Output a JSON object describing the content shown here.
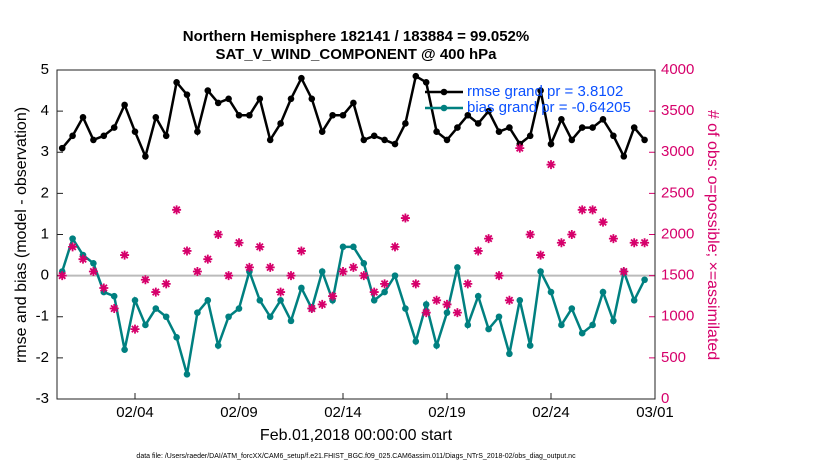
{
  "chart_data": {
    "type": "line",
    "title": "Northern Hemisphere 182141 / 183884 = 99.052%",
    "subtitle": "SAT_V_WIND_COMPONENT @ 400 hPa",
    "xlabel": "Feb.01,2018 00:00:00 start",
    "ylabel": "rmse and bias (model - observation)",
    "y2label": "# of obs: o=possible; ×=assimilated",
    "footnote": "data file: /Users/raeder/DAI/ATM_forcXX/CAM6_setup/f.e21.FHIST_BGC.f09_025.CAM6assim.011/Diags_NTrS_2018-02/obs_diag_output.nc",
    "x": [
      0.5,
      1,
      1.5,
      2,
      2.5,
      3,
      3.5,
      4,
      4.5,
      5,
      5.5,
      6,
      6.5,
      7,
      7.5,
      8,
      8.5,
      9,
      9.5,
      10,
      10.5,
      11,
      11.5,
      12,
      12.5,
      13,
      13.5,
      14,
      14.5,
      15,
      15.5,
      16,
      16.5,
      17,
      17.5,
      18,
      18.5,
      19,
      19.5,
      20,
      20.5,
      21,
      21.5,
      22,
      22.5,
      23,
      23.5,
      24,
      24.5,
      25,
      25.5,
      26,
      26.5,
      27,
      27.5,
      28,
      28.5
    ],
    "xlim": [
      0.25,
      29
    ],
    "xticks": [
      {
        "value": 4,
        "label": "02/04"
      },
      {
        "value": 9,
        "label": "02/09"
      },
      {
        "value": 14,
        "label": "02/14"
      },
      {
        "value": 19,
        "label": "02/19"
      },
      {
        "value": 24,
        "label": "02/24"
      },
      {
        "value": 29,
        "label": "03/01"
      }
    ],
    "ylim": [
      -3,
      5
    ],
    "yticks": [
      -3,
      -2,
      -1,
      0,
      1,
      2,
      3,
      4,
      5
    ],
    "y2lim": [
      0,
      4000
    ],
    "y2ticks": [
      0,
      500,
      1000,
      1500,
      2000,
      2500,
      3000,
      3500,
      4000
    ],
    "reference_line": 0,
    "legend": "upper right",
    "series": [
      {
        "name": "rmse grand pr = 3.8102",
        "color": "#000000",
        "marker": "circle",
        "values": [
          3.1,
          3.4,
          3.85,
          3.3,
          3.4,
          3.6,
          4.15,
          3.5,
          2.9,
          3.85,
          3.4,
          4.7,
          4.4,
          3.5,
          4.5,
          4.2,
          4.3,
          3.9,
          3.9,
          4.3,
          3.3,
          3.7,
          4.3,
          4.8,
          4.3,
          3.5,
          3.9,
          3.9,
          4.2,
          3.3,
          3.4,
          3.3,
          3.2,
          3.7,
          4.85,
          4.7,
          3.5,
          3.3,
          3.6,
          3.9,
          3.7,
          4.0,
          3.5,
          3.6,
          3.2,
          3.4,
          4.5,
          3.2,
          3.8,
          3.3,
          3.6,
          3.6,
          3.8,
          3.4,
          2.9,
          3.6,
          3.3
        ]
      },
      {
        "name": "bias grand pr = -0.64205",
        "color": "#008080",
        "marker": "circle",
        "values": [
          0.1,
          0.9,
          0.5,
          0.3,
          -0.4,
          -0.5,
          -1.8,
          -0.6,
          -1.2,
          -0.8,
          -1.0,
          -1.5,
          -2.4,
          -0.9,
          -0.6,
          -1.7,
          -1.0,
          -0.8,
          0.1,
          -0.6,
          -1.0,
          -0.6,
          -1.1,
          -0.3,
          -0.8,
          0.1,
          -0.6,
          0.7,
          0.7,
          0.3,
          -0.6,
          -0.4,
          0.0,
          -0.8,
          -1.6,
          -0.7,
          -1.7,
          -0.9,
          0.2,
          -1.2,
          -0.5,
          -1.3,
          -1.0,
          -1.9,
          -0.6,
          -1.7,
          0.1,
          -0.4,
          -1.2,
          -0.8,
          -1.4,
          -1.2,
          -0.4,
          -1.1,
          0.1,
          -0.6,
          -0.1
        ]
      },
      {
        "color": "#d6006b",
        "marker": "star",
        "axis": "y2",
        "values": [
          1500,
          1850,
          1700,
          1550,
          1350,
          1100,
          1750,
          850,
          1450,
          1300,
          1400,
          2300,
          1800,
          1550,
          1700,
          2000,
          1500,
          1900,
          1600,
          1850,
          1600,
          1300,
          1500,
          1800,
          1100,
          1150,
          1250,
          1550,
          1600,
          1500,
          1300,
          1400,
          1850,
          2200,
          1400,
          1050,
          1200,
          1150,
          1050,
          1400,
          1800,
          1950,
          1500,
          1200,
          3050,
          2000,
          1750,
          2850,
          1900,
          2000,
          2300,
          2300,
          2150,
          1950,
          1550,
          1900,
          1900
        ]
      }
    ]
  }
}
